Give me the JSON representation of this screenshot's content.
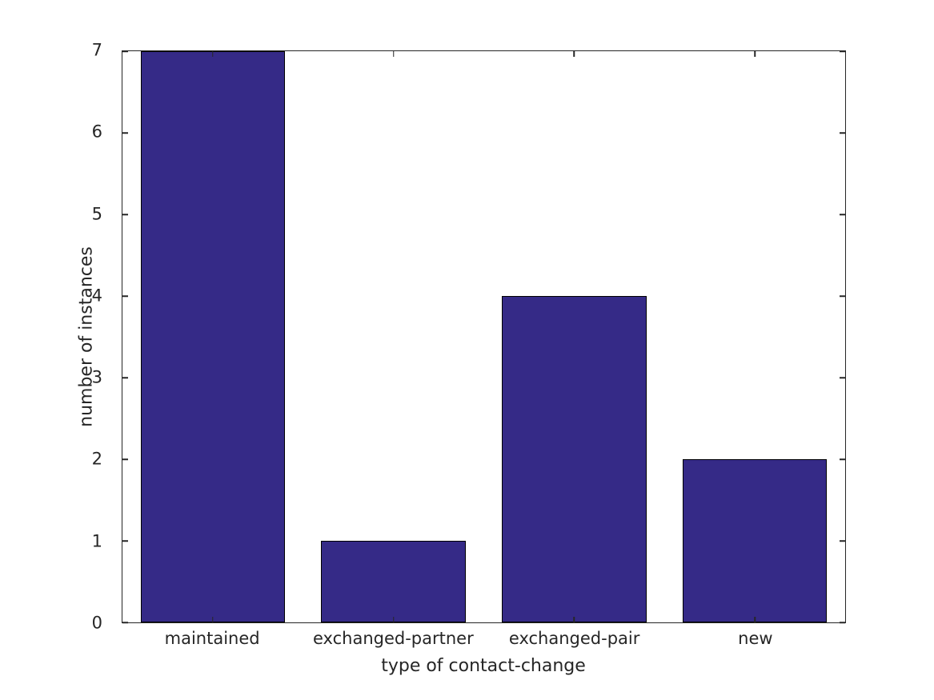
{
  "chart_data": {
    "type": "bar",
    "title": "",
    "categories": [
      "maintained",
      "exchanged-partner",
      "exchanged-pair",
      "new"
    ],
    "values": [
      7,
      1,
      4,
      2
    ],
    "xlabel": "type of contact-change",
    "ylabel": "number of instances",
    "ylim": [
      0,
      7
    ],
    "yticks": [
      0,
      1,
      2,
      3,
      4,
      5,
      6,
      7
    ],
    "bar_width_fraction": 0.8,
    "bar_color": "#352A87",
    "bar_edge_color": "#000000",
    "axis_color": "#262626",
    "text_color": "#262626",
    "background_color": "#ffffff",
    "grid": false,
    "legend": false,
    "tick_direction": "in",
    "box": true
  }
}
